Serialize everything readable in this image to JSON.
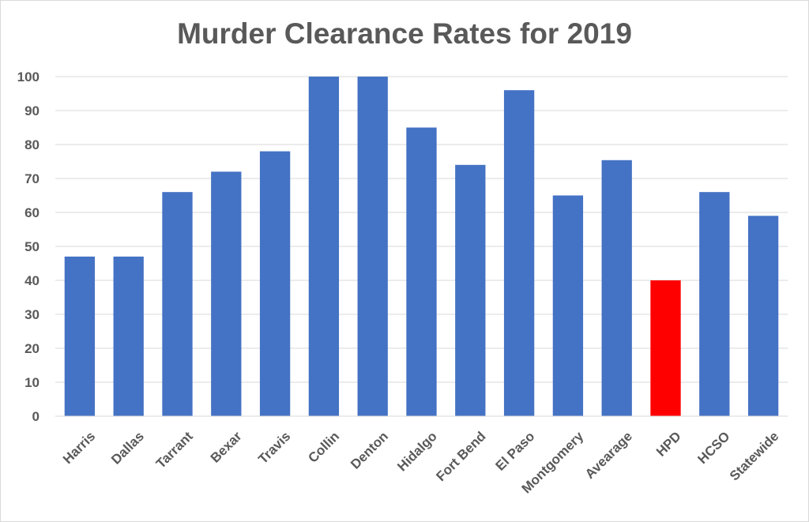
{
  "chart_data": {
    "type": "bar",
    "title": "Murder Clearance Rates for 2019",
    "xlabel": "",
    "ylabel": "",
    "ylim": [
      0,
      100
    ],
    "yticks": [
      0,
      10,
      20,
      30,
      40,
      50,
      60,
      70,
      80,
      90,
      100
    ],
    "grid": true,
    "legend": "none",
    "categories": [
      "Harris",
      "Dallas",
      "Tarrant",
      "Bexar",
      "Travis",
      "Collin",
      "Denton",
      "Hidalgo",
      "Fort Bend",
      "El Paso",
      "Montgomery",
      "Avearage",
      "HPD",
      "HCSO",
      "Statewide"
    ],
    "values": [
      47,
      47,
      66,
      72,
      78,
      100,
      100,
      85,
      74,
      96,
      65,
      75.4,
      40,
      66,
      59
    ],
    "colors": {
      "bar": "#4472c4",
      "highlight": "#ff0000",
      "highlight_category": "HPD",
      "grid": "#d9d9d9",
      "text": "#595959"
    }
  }
}
